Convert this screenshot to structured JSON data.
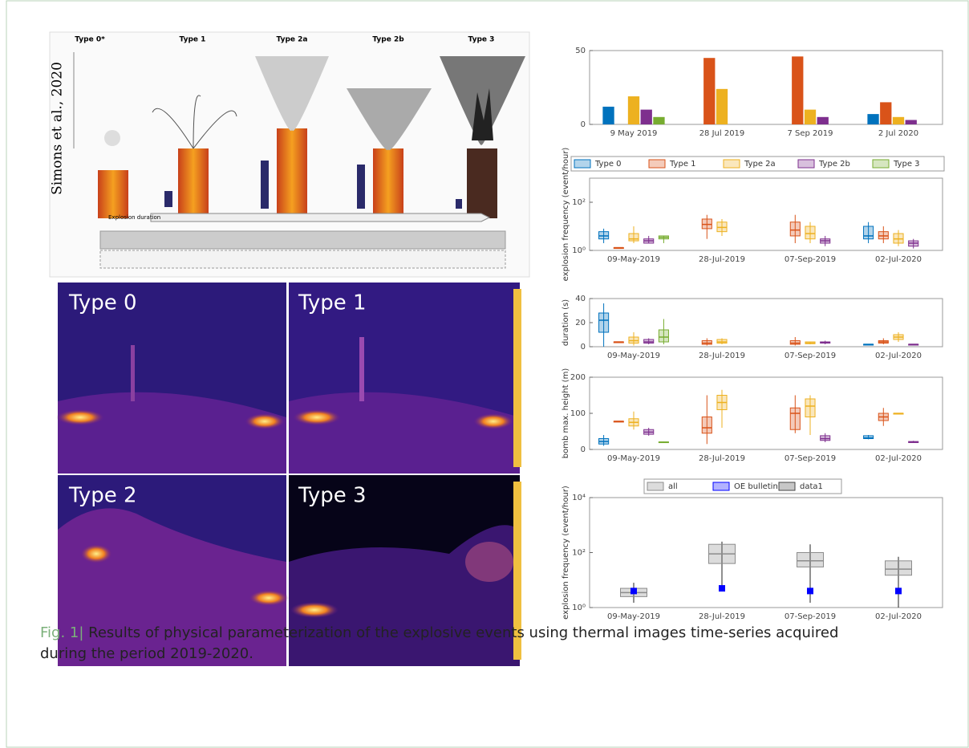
{
  "figure": {
    "scheme": {
      "types": [
        "Type 0*",
        "Type 1",
        "Type 2a",
        "Type 2b",
        "Type 3"
      ],
      "credit": "Simons et al., 2020",
      "axis_label": "Explosion duration"
    },
    "thermal_labels": [
      "Type 0",
      "Type 1",
      "Type 2",
      "Type 3"
    ]
  },
  "chart_data": [
    {
      "type": "bar",
      "categories": [
        "9 May 2019",
        "28 Jul 2019",
        "7 Sep 2019",
        "2 Jul 2020"
      ],
      "ylim": [
        0,
        50
      ],
      "yticks": [
        0,
        50
      ],
      "series": [
        {
          "name": "Type 0",
          "color": "#0072bd",
          "values": [
            12,
            null,
            null,
            7
          ]
        },
        {
          "name": "Type 1",
          "color": "#d95319",
          "values": [
            null,
            45,
            46,
            15
          ]
        },
        {
          "name": "Type 2a",
          "color": "#edb120",
          "values": [
            19,
            24,
            10,
            5
          ]
        },
        {
          "name": "Type 2b",
          "color": "#7e2f8e",
          "values": [
            10,
            null,
            5,
            3
          ]
        },
        {
          "name": "Type 3",
          "color": "#77ac30",
          "values": [
            5,
            null,
            null,
            null
          ]
        }
      ]
    },
    {
      "type": "box",
      "ylabel": "explosion frequency (event/hour)",
      "log": true,
      "legend": "top",
      "categories": [
        "09-May-2019",
        "28-Jul-2019",
        "07-Sep-2019",
        "02-Jul-2020"
      ],
      "ylim": [
        1,
        1000
      ],
      "yticks": [
        {
          "value": 1,
          "label": "10⁰"
        },
        {
          "value": 100,
          "label": "10²"
        }
      ],
      "series": [
        {
          "name": "Type 0",
          "color": "#0072bd",
          "values": [
            [
              2,
              3,
              4,
              6,
              8
            ],
            null,
            null,
            [
              2,
              3,
              4,
              10,
              15
            ]
          ]
        },
        {
          "name": "Type 1",
          "color": "#d95319",
          "values": [
            [
              1.3,
              1.3,
              1.3,
              1.3,
              1.3
            ],
            [
              3,
              8,
              12,
              20,
              30
            ],
            [
              2,
              4,
              7,
              15,
              30
            ],
            [
              2,
              3,
              4,
              6,
              10
            ]
          ]
        },
        {
          "name": "Type 2a",
          "color": "#edb120",
          "values": [
            [
              2,
              2.5,
              3,
              5,
              10
            ],
            [
              4,
              6,
              9,
              15,
              20
            ],
            [
              2,
              3,
              5,
              10,
              15
            ],
            [
              1.5,
              2,
              3,
              5,
              7
            ]
          ]
        },
        {
          "name": "Type 2b",
          "color": "#7e2f8e",
          "values": [
            [
              2,
              2,
              2.5,
              3,
              4
            ],
            null,
            [
              1.5,
              2,
              2.5,
              3,
              4
            ],
            [
              1.2,
              1.5,
              2,
              2.5,
              3
            ]
          ]
        },
        {
          "name": "Type 3",
          "color": "#77ac30",
          "values": [
            [
              2,
              3,
              3.5,
              4,
              4
            ],
            null,
            null,
            null
          ]
        }
      ]
    },
    {
      "type": "box",
      "ylabel": "duration (s)",
      "categories": [
        "09-May-2019",
        "28-Jul-2019",
        "07-Sep-2019",
        "02-Jul-2020"
      ],
      "ylim": [
        0,
        40
      ],
      "yticks": [
        0,
        20,
        40
      ],
      "series": [
        {
          "color": "#0072bd",
          "values": [
            [
              0,
              12,
              22,
              28,
              36
            ],
            null,
            null,
            [
              2,
              2,
              2,
              2,
              2
            ]
          ]
        },
        {
          "color": "#d95319",
          "values": [
            [
              4,
              4,
              4,
              4,
              4
            ],
            [
              1,
              2,
              3,
              5,
              7
            ],
            [
              1,
              2,
              3,
              5,
              8
            ],
            [
              2,
              3,
              4,
              5,
              7
            ]
          ]
        },
        {
          "color": "#edb120",
          "values": [
            [
              1,
              3,
              5,
              8,
              12
            ],
            [
              2,
              3,
              4,
              6,
              7
            ],
            [
              2,
              2.5,
              3,
              4,
              4
            ],
            [
              4,
              6,
              8,
              10,
              12
            ]
          ]
        },
        {
          "color": "#7e2f8e",
          "values": [
            [
              2,
              3,
              4,
              6,
              7
            ],
            null,
            [
              2,
              3,
              3.5,
              4,
              5
            ],
            [
              2,
              2,
              2,
              2,
              2
            ]
          ]
        },
        {
          "color": "#77ac30",
          "values": [
            [
              2,
              4,
              8,
              14,
              23
            ],
            null,
            null,
            null
          ]
        }
      ]
    },
    {
      "type": "box",
      "ylabel": "bomb max. height (m)",
      "categories": [
        "09-May-2019",
        "28-Jul-2019",
        "07-Sep-2019",
        "02-Jul-2020"
      ],
      "ylim": [
        0,
        200
      ],
      "yticks": [
        0,
        100,
        200
      ],
      "series": [
        {
          "color": "#0072bd",
          "values": [
            [
              10,
              15,
              22,
              30,
              40
            ],
            null,
            null,
            [
              28,
              30,
              32,
              38,
              40
            ]
          ]
        },
        {
          "color": "#d95319",
          "values": [
            [
              78,
              78,
              78,
              78,
              78
            ],
            [
              15,
              45,
              60,
              90,
              150
            ],
            [
              45,
              55,
              100,
              115,
              150
            ],
            [
              65,
              80,
              90,
              100,
              115
            ]
          ]
        },
        {
          "color": "#edb120",
          "values": [
            [
              55,
              65,
              75,
              85,
              105
            ],
            [
              60,
              110,
              130,
              150,
              165
            ],
            [
              40,
              90,
              120,
              140,
              150
            ],
            [
              100,
              100,
              100,
              100,
              100
            ]
          ]
        },
        {
          "color": "#7e2f8e",
          "values": [
            [
              38,
              42,
              48,
              55,
              60
            ],
            null,
            [
              20,
              25,
              30,
              38,
              45
            ],
            [
              18,
              19,
              20,
              22,
              24
            ]
          ]
        },
        {
          "color": "#77ac30",
          "values": [
            [
              18,
              19,
              20,
              21,
              22
            ],
            null,
            null,
            null
          ]
        }
      ]
    },
    {
      "type": "box",
      "ylabel": "explosion frequency (event/hour)",
      "log": true,
      "legend": "top",
      "categories": [
        "09-May-2019",
        "28-Jul-2019",
        "07-Sep-2019",
        "02-Jul-2020"
      ],
      "ylim": [
        1,
        10000
      ],
      "yticks": [
        {
          "value": 1,
          "label": "10⁰"
        },
        {
          "value": 100,
          "label": "10²"
        },
        {
          "value": 10000,
          "label": "10⁴"
        }
      ],
      "series": [
        {
          "name": "all",
          "color": "#8c8c8c",
          "values": [
            [
              1.5,
              2.5,
              3.5,
              5,
              8
            ],
            [
              5,
              40,
              90,
              200,
              250
            ],
            [
              1.5,
              30,
              50,
              100,
              200
            ],
            [
              1,
              15,
              25,
              50,
              70
            ]
          ]
        },
        {
          "name": "OE bulletin",
          "color": "#0000ff",
          "values": [
            4,
            5,
            4,
            4
          ]
        },
        {
          "name": "data1",
          "color": "#444444",
          "values": [
            null,
            null,
            null,
            null
          ]
        }
      ]
    }
  ],
  "caption": {
    "label": "Fig. 1|",
    "text": " Results of physical parameterization of the explosive events using thermal images time-series acquired during the period 2019-2020."
  }
}
